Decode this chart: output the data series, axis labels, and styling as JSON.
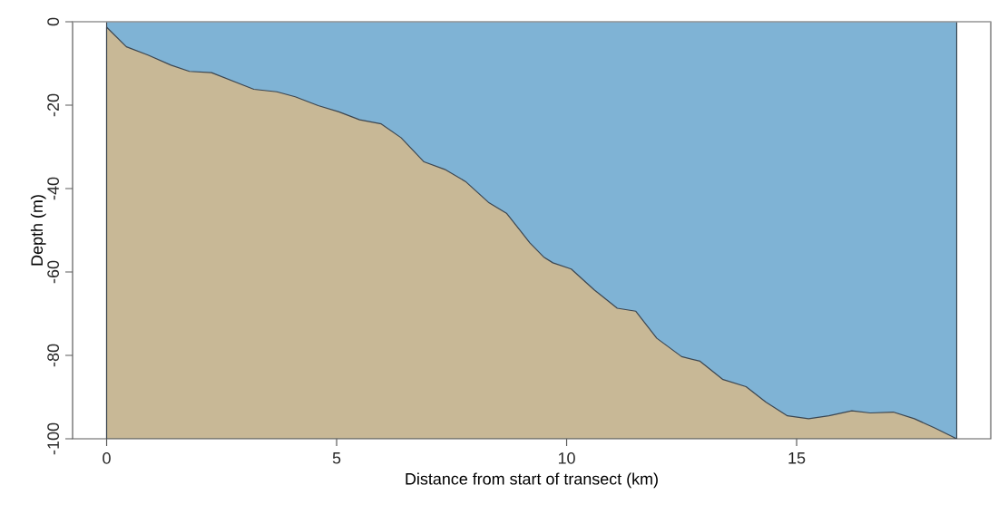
{
  "chart_data": {
    "type": "area",
    "xlabel": "Distance from start of transect (km)",
    "ylabel": "Depth (m)",
    "xlim": [
      -0.74,
      19.22
    ],
    "ylim": [
      -100,
      0
    ],
    "xticks": [
      0,
      5,
      10,
      15
    ],
    "yticks": [
      0,
      -20,
      -40,
      -60,
      -80,
      -100
    ],
    "ref_lines": [
      {
        "axis": "y",
        "value": 0,
        "color": "#bbbbbb"
      }
    ],
    "bands": [
      {
        "axis": "x",
        "from": 0,
        "to": 18.48,
        "color": "#7fb3d5"
      }
    ],
    "series": [
      {
        "color": "#c8b896",
        "x": [
          0,
          0,
          0.43,
          0.9,
          1.4,
          1.8,
          2.28,
          3.2,
          3.7,
          4.1,
          4.6,
          5.05,
          5.5,
          5.97,
          6.4,
          6.9,
          7.35,
          7.8,
          8.3,
          8.7,
          9.2,
          9.5,
          9.7,
          10.1,
          10.6,
          11.1,
          11.5,
          11.96,
          12.5,
          12.9,
          13.4,
          13.9,
          14.33,
          14.8,
          15.26,
          15.7,
          16.2,
          16.6,
          17.1,
          17.56,
          18.0,
          18.48
        ],
        "values": [
          -100,
          -1.3,
          -6,
          -8,
          -10.4,
          -11.9,
          -12.2,
          -16.2,
          -16.8,
          -18,
          -20.1,
          -21.6,
          -23.5,
          -24.5,
          -27.8,
          -33.6,
          -35.4,
          -38.3,
          -43.3,
          -46,
          -53,
          -56.4,
          -57.8,
          -59.3,
          -64.3,
          -68.7,
          -69.4,
          -75.9,
          -80.3,
          -81.4,
          -85.8,
          -87.5,
          -91.2,
          -94.5,
          -95.2,
          -94.5,
          -93.3,
          -93.8,
          -93.6,
          -95.2,
          -97.4,
          -100
        ]
      }
    ]
  }
}
